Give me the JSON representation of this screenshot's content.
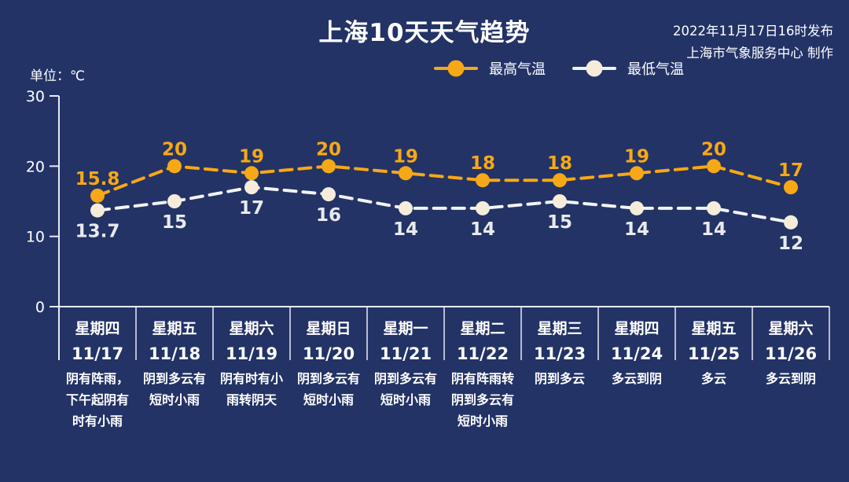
{
  "header": {
    "title": "上海10天天气趋势",
    "publish_line1": "2022年11月17日16时发布",
    "publish_line2": "上海市气象服务中心 制作"
  },
  "unit_label": "单位：℃",
  "legend": {
    "max_label": "最高气温",
    "min_label": "最低气温"
  },
  "colors": {
    "background": "#233366",
    "axis": "#E8EBF3",
    "text": "#FFFFFF",
    "max_series": "#F7A817",
    "min_series_line": "#F2F3F6",
    "min_series_dot": "#F5ECDA",
    "min_series_label": "#E9EAEE"
  },
  "chart_data": {
    "type": "line",
    "title": "上海10天天气趋势",
    "ylabel": "单位：℃",
    "ylim": [
      0,
      30
    ],
    "yticks": [
      0,
      10,
      20,
      30
    ],
    "grid": false,
    "legend_position": "top",
    "line_style": "dashed",
    "categories": [
      {
        "weekday": "星期四",
        "date": "11/17",
        "weather": "阴有阵雨，下午起阴有时有小雨"
      },
      {
        "weekday": "星期五",
        "date": "11/18",
        "weather": "阴到多云有短时小雨"
      },
      {
        "weekday": "星期六",
        "date": "11/19",
        "weather": "阴有时有小雨转阴天"
      },
      {
        "weekday": "星期日",
        "date": "11/20",
        "weather": "阴到多云有短时小雨"
      },
      {
        "weekday": "星期一",
        "date": "11/21",
        "weather": "阴到多云有短时小雨"
      },
      {
        "weekday": "星期二",
        "date": "11/22",
        "weather": "阴有阵雨转阴到多云有短时小雨"
      },
      {
        "weekday": "星期三",
        "date": "11/23",
        "weather": "阴到多云"
      },
      {
        "weekday": "星期四",
        "date": "11/24",
        "weather": "多云到阴"
      },
      {
        "weekday": "星期五",
        "date": "11/25",
        "weather": "多云"
      },
      {
        "weekday": "星期六",
        "date": "11/26",
        "weather": "多云到阴"
      }
    ],
    "series": [
      {
        "name": "最高气温",
        "values": [
          15.8,
          20,
          19,
          20,
          19,
          18,
          18,
          19,
          20,
          17
        ],
        "color": "#F7A817",
        "dot_color": "#F7A817",
        "label_color": "#F7A817",
        "label_position": "above"
      },
      {
        "name": "最低气温",
        "values": [
          13.7,
          15,
          17,
          16,
          14,
          14,
          15,
          14,
          14,
          12
        ],
        "color": "#F2F3F6",
        "dot_color": "#F5ECDA",
        "label_color": "#E9EAEE",
        "label_position": "below"
      }
    ]
  }
}
